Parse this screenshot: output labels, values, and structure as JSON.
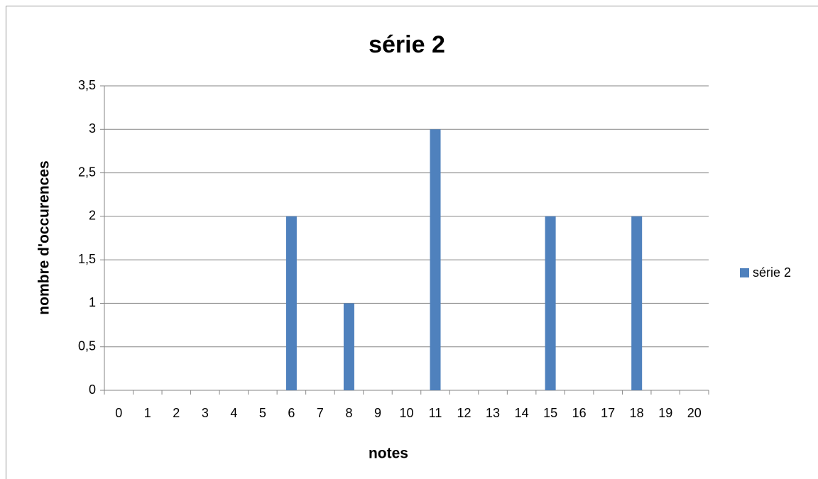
{
  "chart_data": {
    "type": "bar",
    "title": "série 2",
    "x_label": "notes",
    "y_label": "nombre d'occurences",
    "categories": [
      "0",
      "1",
      "2",
      "3",
      "4",
      "5",
      "6",
      "7",
      "8",
      "9",
      "10",
      "11",
      "12",
      "13",
      "14",
      "15",
      "16",
      "17",
      "18",
      "19",
      "20"
    ],
    "series": [
      {
        "name": "série 2",
        "color": "#4f81bd",
        "values": [
          0,
          0,
          0,
          0,
          0,
          0,
          2,
          0,
          1,
          0,
          0,
          3,
          0,
          0,
          0,
          2,
          0,
          0,
          2,
          0,
          0
        ]
      }
    ],
    "ylim": [
      0,
      3.5
    ],
    "yticks": [
      0,
      {
        "value": 0.5,
        "label": "0,5"
      },
      1,
      {
        "value": 1.5,
        "label": "1,5"
      },
      2,
      {
        "value": 2.5,
        "label": "2,5"
      },
      3,
      {
        "value": 3.5,
        "label": "3,5"
      }
    ],
    "grid": true,
    "legend": "right"
  }
}
